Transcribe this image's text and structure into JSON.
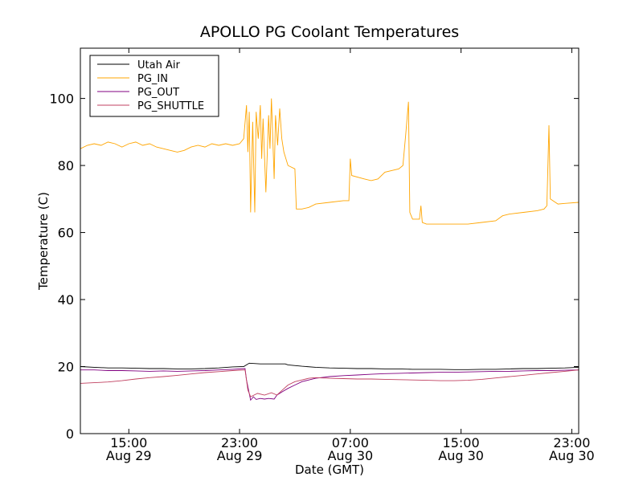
{
  "chart_data": {
    "type": "line",
    "title": "APOLLO PG Coolant Temperatures",
    "xlabel": "Date (GMT)",
    "ylabel": "Temperature (C)",
    "x_unit": "hours since Aug 29 11:30 GMT",
    "xlim": [
      0,
      36
    ],
    "ylim": [
      0,
      115
    ],
    "y_ticks": [
      0,
      20,
      40,
      60,
      80,
      100
    ],
    "x_ticks": [
      {
        "x": 3.5,
        "time": "15:00",
        "date": "Aug 29"
      },
      {
        "x": 11.5,
        "time": "23:00",
        "date": "Aug 29"
      },
      {
        "x": 19.5,
        "time": "07:00",
        "date": "Aug 30"
      },
      {
        "x": 27.5,
        "time": "15:00",
        "date": "Aug 30"
      },
      {
        "x": 35.5,
        "time": "23:00",
        "date": "Aug 30"
      }
    ],
    "legend_position": "top-left",
    "series": [
      {
        "name": "Utah Air",
        "color": "#000000",
        "points": [
          [
            0,
            20
          ],
          [
            1,
            19.8
          ],
          [
            2,
            19.6
          ],
          [
            3,
            19.6
          ],
          [
            4,
            19.5
          ],
          [
            5,
            19.4
          ],
          [
            6,
            19.4
          ],
          [
            7,
            19.3
          ],
          [
            8,
            19.3
          ],
          [
            9,
            19.4
          ],
          [
            10,
            19.6
          ],
          [
            11,
            19.9
          ],
          [
            11.8,
            20
          ],
          [
            12.2,
            21
          ],
          [
            13,
            20.8
          ],
          [
            14,
            20.8
          ],
          [
            14.8,
            20.8
          ],
          [
            15,
            20.5
          ],
          [
            16,
            20.1
          ],
          [
            17,
            19.8
          ],
          [
            18,
            19.6
          ],
          [
            19,
            19.5
          ],
          [
            20,
            19.4
          ],
          [
            21,
            19.4
          ],
          [
            22,
            19.3
          ],
          [
            23,
            19.3
          ],
          [
            24,
            19.2
          ],
          [
            25,
            19.2
          ],
          [
            26,
            19.2
          ],
          [
            27,
            19.1
          ],
          [
            28,
            19.1
          ],
          [
            29,
            19.2
          ],
          [
            30,
            19.2
          ],
          [
            31,
            19.3
          ],
          [
            32,
            19.4
          ],
          [
            33,
            19.4
          ],
          [
            34,
            19.5
          ],
          [
            35,
            19.6
          ],
          [
            36,
            19.8
          ]
        ]
      },
      {
        "name": "PG_IN",
        "color": "#ffa500",
        "points": [
          [
            0,
            85
          ],
          [
            0.5,
            86
          ],
          [
            1,
            86.5
          ],
          [
            1.5,
            86
          ],
          [
            2,
            87
          ],
          [
            2.5,
            86.5
          ],
          [
            3,
            85.5
          ],
          [
            3.5,
            86.5
          ],
          [
            4,
            87
          ],
          [
            4.5,
            86
          ],
          [
            5,
            86.5
          ],
          [
            5.5,
            85.5
          ],
          [
            6,
            85
          ],
          [
            6.5,
            84.5
          ],
          [
            7,
            84
          ],
          [
            7.5,
            84.5
          ],
          [
            8,
            85.5
          ],
          [
            8.5,
            86
          ],
          [
            9,
            85.5
          ],
          [
            9.5,
            86.5
          ],
          [
            10,
            86
          ],
          [
            10.5,
            86.5
          ],
          [
            11,
            86
          ],
          [
            11.5,
            86.5
          ],
          [
            11.8,
            88
          ],
          [
            12,
            98
          ],
          [
            12.1,
            84
          ],
          [
            12.2,
            96
          ],
          [
            12.3,
            66
          ],
          [
            12.45,
            93
          ],
          [
            12.6,
            66
          ],
          [
            12.7,
            96
          ],
          [
            12.85,
            88
          ],
          [
            13,
            98
          ],
          [
            13.1,
            82
          ],
          [
            13.2,
            94
          ],
          [
            13.4,
            72
          ],
          [
            13.6,
            95
          ],
          [
            13.7,
            85
          ],
          [
            13.8,
            100
          ],
          [
            14,
            76
          ],
          [
            14.1,
            95
          ],
          [
            14.25,
            86
          ],
          [
            14.4,
            97
          ],
          [
            14.55,
            88
          ],
          [
            14.7,
            84
          ],
          [
            15,
            80
          ],
          [
            15.5,
            79
          ],
          [
            15.6,
            67
          ],
          [
            16,
            67
          ],
          [
            16.5,
            67.5
          ],
          [
            17,
            68.5
          ],
          [
            18,
            69
          ],
          [
            19,
            69.5
          ],
          [
            19.4,
            69.5
          ],
          [
            19.5,
            82
          ],
          [
            19.6,
            77
          ],
          [
            20.5,
            76
          ],
          [
            21,
            75.5
          ],
          [
            21.5,
            76
          ],
          [
            22,
            78
          ],
          [
            23,
            79
          ],
          [
            23.3,
            80
          ],
          [
            23.5,
            89
          ],
          [
            23.7,
            99
          ],
          [
            23.8,
            66
          ],
          [
            24,
            64
          ],
          [
            24.5,
            64
          ],
          [
            24.6,
            68
          ],
          [
            24.7,
            63
          ],
          [
            25,
            62.5
          ],
          [
            26,
            62.5
          ],
          [
            27,
            62.5
          ],
          [
            28,
            62.5
          ],
          [
            29,
            63
          ],
          [
            30,
            63.5
          ],
          [
            30.5,
            65
          ],
          [
            31,
            65.5
          ],
          [
            32,
            66
          ],
          [
            33,
            66.5
          ],
          [
            33.5,
            67
          ],
          [
            33.7,
            68
          ],
          [
            33.85,
            92
          ],
          [
            33.95,
            70
          ],
          [
            34.5,
            68.5
          ],
          [
            35,
            68.7
          ],
          [
            36,
            69
          ]
        ]
      },
      {
        "name": "PG_OUT",
        "color": "#800080",
        "points": [
          [
            0,
            19
          ],
          [
            1,
            19
          ],
          [
            2,
            18.8
          ],
          [
            3,
            18.8
          ],
          [
            4,
            18.7
          ],
          [
            5,
            18.6
          ],
          [
            6,
            18.7
          ],
          [
            7,
            18.6
          ],
          [
            8,
            18.7
          ],
          [
            9,
            18.8
          ],
          [
            10,
            19
          ],
          [
            11,
            19.2
          ],
          [
            11.9,
            19.4
          ],
          [
            12,
            16
          ],
          [
            12.3,
            10
          ],
          [
            12.5,
            11
          ],
          [
            12.7,
            10.2
          ],
          [
            13,
            10.5
          ],
          [
            13.3,
            10.3
          ],
          [
            13.6,
            10.5
          ],
          [
            14,
            10.3
          ],
          [
            14.2,
            11.5
          ],
          [
            14.6,
            12.5
          ],
          [
            15,
            13.5
          ],
          [
            15.5,
            14.5
          ],
          [
            16,
            15.5
          ],
          [
            16.5,
            16
          ],
          [
            17,
            16.5
          ],
          [
            18,
            17
          ],
          [
            19,
            17.3
          ],
          [
            20,
            17.5
          ],
          [
            21,
            17.7
          ],
          [
            22,
            17.9
          ],
          [
            23,
            18
          ],
          [
            24,
            18.1
          ],
          [
            25,
            18.2
          ],
          [
            26,
            18.3
          ],
          [
            27,
            18.3
          ],
          [
            28,
            18.4
          ],
          [
            29,
            18.5
          ],
          [
            30,
            18.6
          ],
          [
            31,
            18.6
          ],
          [
            32,
            18.7
          ],
          [
            33,
            18.8
          ],
          [
            34,
            18.8
          ],
          [
            35,
            18.9
          ],
          [
            36,
            19
          ]
        ]
      },
      {
        "name": "PG_SHUTTLE",
        "color": "#c04060",
        "points": [
          [
            0,
            15
          ],
          [
            1,
            15.2
          ],
          [
            2,
            15.4
          ],
          [
            3,
            15.8
          ],
          [
            4,
            16.3
          ],
          [
            5,
            16.7
          ],
          [
            6,
            17
          ],
          [
            7,
            17.4
          ],
          [
            8,
            17.8
          ],
          [
            9,
            18.2
          ],
          [
            10,
            18.5
          ],
          [
            11,
            18.8
          ],
          [
            11.9,
            19
          ],
          [
            12.1,
            13
          ],
          [
            12.3,
            11
          ],
          [
            12.8,
            12
          ],
          [
            13.3,
            11.5
          ],
          [
            13.8,
            12.2
          ],
          [
            14.2,
            11.5
          ],
          [
            14.6,
            13
          ],
          [
            15,
            14.5
          ],
          [
            15.5,
            15.5
          ],
          [
            16,
            16
          ],
          [
            16.5,
            16.5
          ],
          [
            17,
            16.7
          ],
          [
            18,
            16.5
          ],
          [
            19,
            16.4
          ],
          [
            20,
            16.3
          ],
          [
            21,
            16.3
          ],
          [
            22,
            16.2
          ],
          [
            23,
            16.1
          ],
          [
            24,
            16
          ],
          [
            25,
            15.9
          ],
          [
            26,
            15.8
          ],
          [
            27,
            15.8
          ],
          [
            28,
            15.9
          ],
          [
            29,
            16.2
          ],
          [
            30,
            16.6
          ],
          [
            31,
            17
          ],
          [
            32,
            17.4
          ],
          [
            33,
            17.8
          ],
          [
            34,
            18.2
          ],
          [
            35,
            18.6
          ],
          [
            36,
            19
          ]
        ]
      }
    ]
  }
}
